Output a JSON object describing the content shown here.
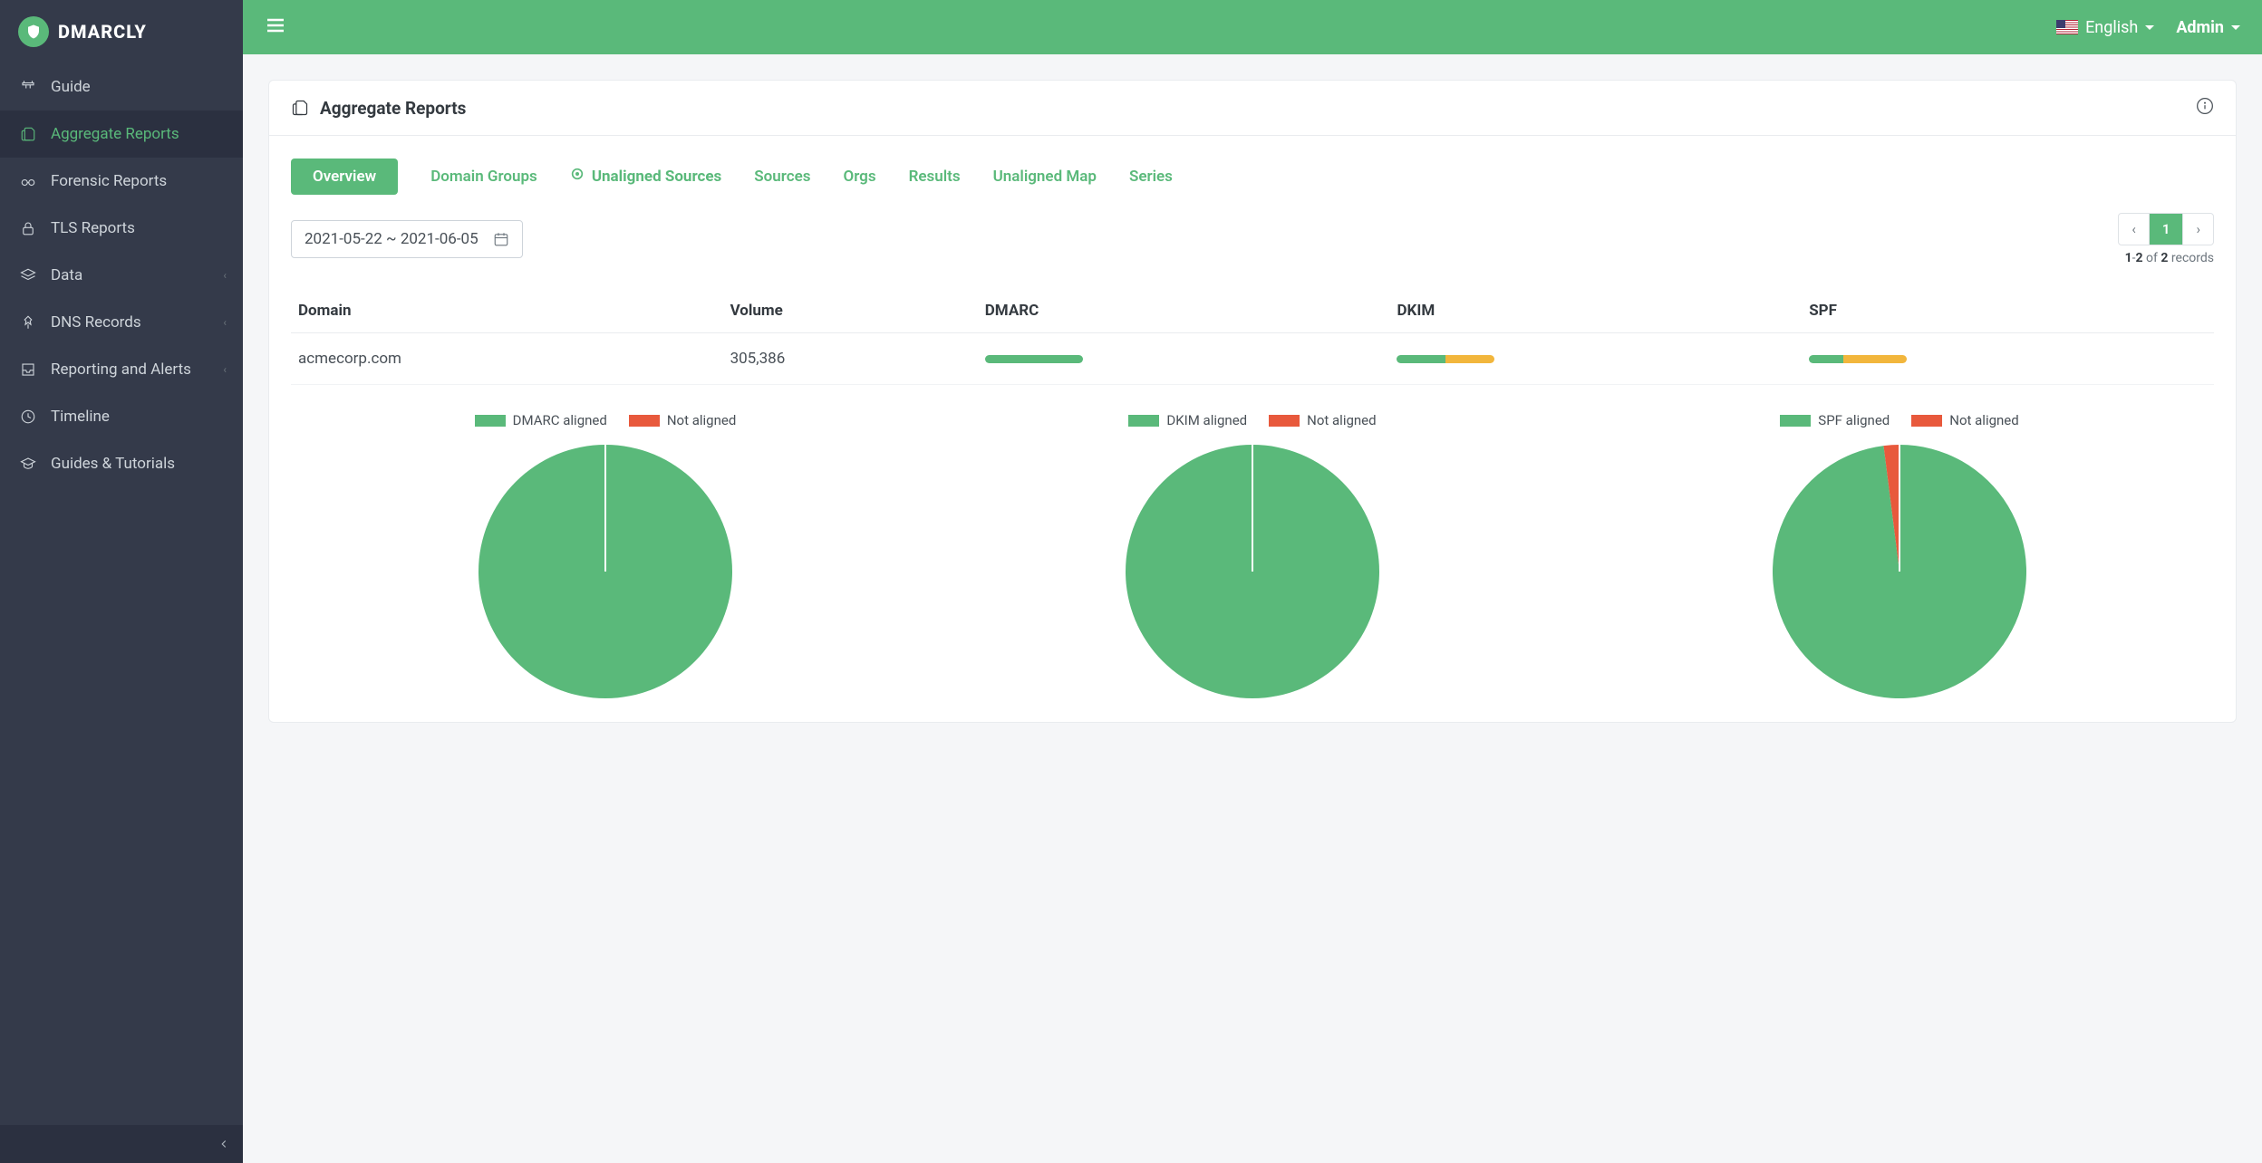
{
  "brand": {
    "name": "DMARCLY"
  },
  "sidebar": {
    "items": [
      {
        "label": "Guide",
        "icon": "guide",
        "active": false,
        "expandable": false
      },
      {
        "label": "Aggregate Reports",
        "icon": "files",
        "active": true,
        "expandable": false
      },
      {
        "label": "Forensic Reports",
        "icon": "glasses",
        "active": false,
        "expandable": false
      },
      {
        "label": "TLS Reports",
        "icon": "lock",
        "active": false,
        "expandable": false
      },
      {
        "label": "Data",
        "icon": "layers",
        "active": false,
        "expandable": true
      },
      {
        "label": "DNS Records",
        "icon": "pin",
        "active": false,
        "expandable": true
      },
      {
        "label": "Reporting and Alerts",
        "icon": "inbox",
        "active": false,
        "expandable": true
      },
      {
        "label": "Timeline",
        "icon": "clock",
        "active": false,
        "expandable": false
      },
      {
        "label": "Guides & Tutorials",
        "icon": "grad",
        "active": false,
        "expandable": false
      }
    ]
  },
  "topbar": {
    "language": "English",
    "user": "Admin"
  },
  "page": {
    "title": "Aggregate Reports",
    "tabs": [
      {
        "label": "Overview",
        "style": "pill"
      },
      {
        "label": "Domain Groups",
        "style": "plain"
      },
      {
        "label": "Unaligned Sources",
        "style": "target"
      },
      {
        "label": "Sources",
        "style": "plain"
      },
      {
        "label": "Orgs",
        "style": "plain"
      },
      {
        "label": "Results",
        "style": "plain"
      },
      {
        "label": "Unaligned Map",
        "style": "plain"
      },
      {
        "label": "Series",
        "style": "plain"
      }
    ],
    "date_range": "2021-05-22 ~ 2021-06-05",
    "pagination": {
      "current": "1",
      "range_from": "1",
      "range_to": "2",
      "of_word": "of",
      "total": "2",
      "records_word": "records"
    },
    "table": {
      "columns": [
        "Domain",
        "Volume",
        "DMARC",
        "DKIM",
        "SPF"
      ],
      "rows": [
        {
          "domain": "acmecorp.com",
          "volume": "305,386",
          "dmarc_bar": {
            "segments": [
              {
                "pct": 100,
                "color": "#5ab97a"
              }
            ]
          },
          "dkim_bar": {
            "segments": [
              {
                "pct": 50,
                "color": "#5ab97a"
              },
              {
                "pct": 50,
                "color": "#f2b63c"
              }
            ]
          },
          "spf_bar": {
            "segments": [
              {
                "pct": 35,
                "color": "#5ab97a"
              },
              {
                "pct": 65,
                "color": "#f2b63c"
              }
            ]
          }
        }
      ]
    },
    "charts": [
      {
        "legend": [
          {
            "label": "DMARC aligned",
            "color": "#5ab97a"
          },
          {
            "label": "Not aligned",
            "color": "#e8593c"
          }
        ],
        "slices": [
          {
            "value": 100,
            "color": "#5ab97a"
          },
          {
            "value": 0,
            "color": "#e8593c"
          }
        ],
        "radius": 140
      },
      {
        "legend": [
          {
            "label": "DKIM aligned",
            "color": "#5ab97a"
          },
          {
            "label": "Not aligned",
            "color": "#e8593c"
          }
        ],
        "slices": [
          {
            "value": 100,
            "color": "#5ab97a"
          },
          {
            "value": 0,
            "color": "#e8593c"
          }
        ],
        "radius": 140
      },
      {
        "legend": [
          {
            "label": "SPF aligned",
            "color": "#5ab97a"
          },
          {
            "label": "Not aligned",
            "color": "#e8593c"
          }
        ],
        "slices": [
          {
            "value": 98,
            "color": "#5ab97a"
          },
          {
            "value": 2,
            "color": "#e8593c"
          }
        ],
        "radius": 140
      }
    ]
  },
  "colors": {
    "accent": "#5ab97a",
    "warn": "#f2b63c",
    "danger": "#e8593c",
    "sidebar_bg": "#343a4a",
    "sidebar_active_bg": "#2b3040"
  }
}
